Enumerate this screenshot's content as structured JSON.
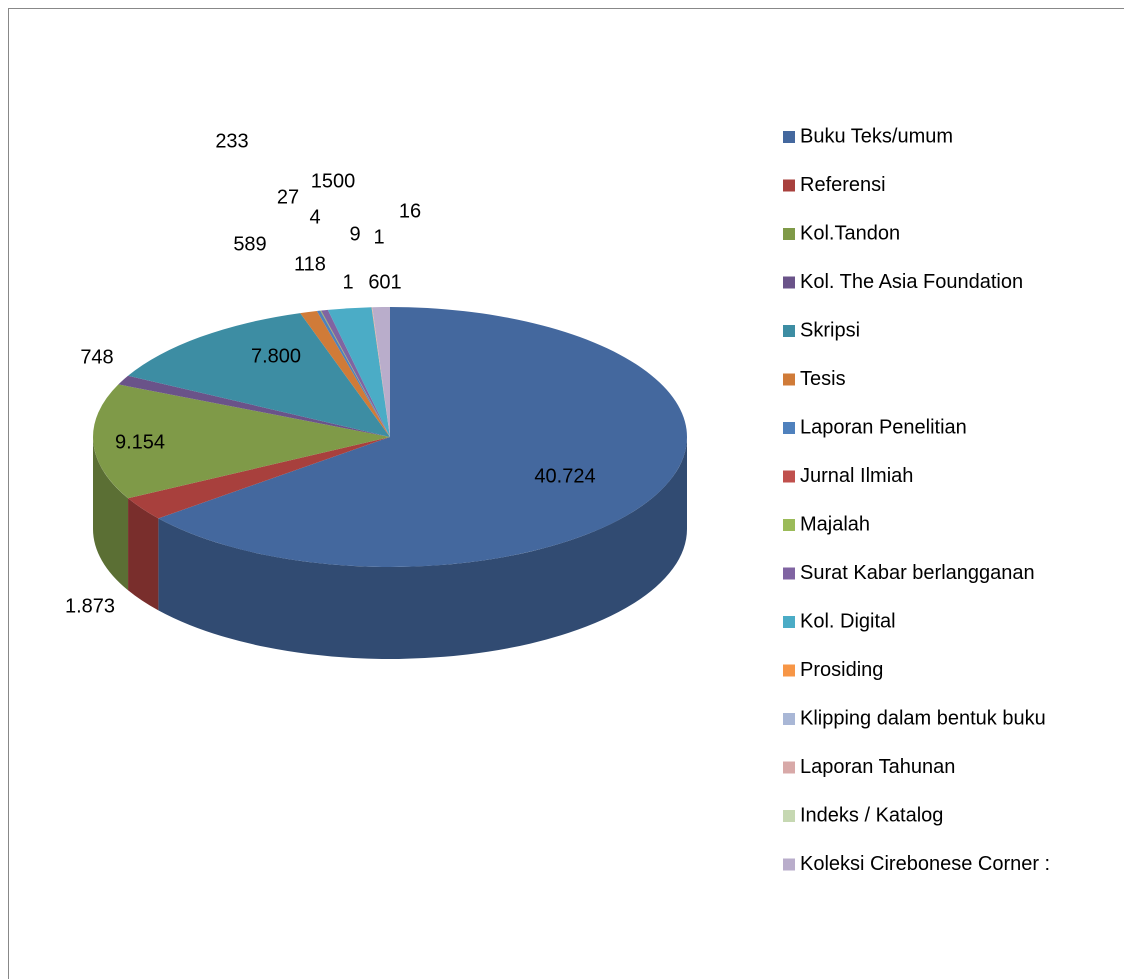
{
  "chart_data": {
    "type": "pie3d",
    "categories": [
      "Buku Teks/umum",
      "Referensi",
      "Kol.Tandon",
      "Kol. The Asia Foundation",
      "Skripsi",
      "Tesis",
      "Laporan Penelitian",
      "Jurnal Ilmiah",
      "Majalah",
      "Surat Kabar berlangganan",
      "Kol. Digital",
      "Prosiding",
      "Klipping dalam bentuk buku",
      "Laporan Tahunan",
      "Indeks / Katalog",
      "Koleksi Cirebonese Corner :"
    ],
    "values": [
      40724,
      1873,
      9154,
      748,
      7800,
      589,
      118,
      4,
      27,
      233,
      1500,
      9,
      1,
      16,
      1,
      601
    ],
    "value_labels": [
      "40.724",
      "1.873",
      "9.154",
      "748",
      "7.800",
      "589",
      "118",
      "4",
      "27",
      "233",
      "1500",
      "9",
      "1",
      "16",
      "1",
      "601"
    ],
    "colors": [
      "#44689e",
      "#a8403d",
      "#7f9a48",
      "#6a5389",
      "#3d8da3",
      "#d07b38",
      "#4f81bd",
      "#c0504d",
      "#9bbb59",
      "#8064a2",
      "#4bacc6",
      "#f79646",
      "#a9b7d6",
      "#d8a9a8",
      "#c6d8b2",
      "#b9adcb"
    ],
    "legend": "right"
  }
}
